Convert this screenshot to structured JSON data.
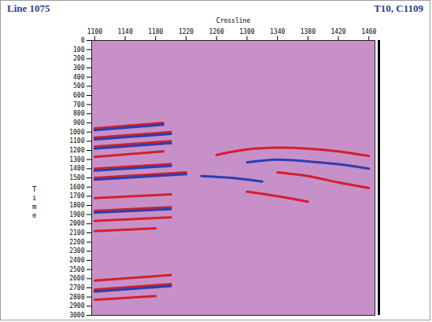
{
  "chart_data": {
    "type": "seismic_section",
    "title": "Line 1075",
    "subtitle": "T10, C1109",
    "xlabel": "Crossline",
    "ylabel": "Time",
    "color": "#c890c8",
    "xlim": [
      1096,
      1468
    ],
    "xticks": [
      1100,
      1140,
      1180,
      1220,
      1260,
      1300,
      1340,
      1380,
      1420,
      1460
    ],
    "ylim": [
      0,
      3000
    ],
    "yticks": [
      0,
      100,
      200,
      300,
      400,
      500,
      600,
      700,
      800,
      900,
      1000,
      1100,
      1200,
      1300,
      1400,
      1500,
      1600,
      1700,
      1800,
      1900,
      2000,
      2100,
      2200,
      2300,
      2400,
      2500,
      2600,
      2700,
      2800,
      2900,
      3000
    ],
    "series": [
      {
        "color": "#d0202a",
        "x": [
          1100,
          1190
        ],
        "values": [
          960,
          900
        ]
      },
      {
        "color": "#2a3fb0",
        "x": [
          1100,
          1190
        ],
        "values": [
          980,
          920
        ]
      },
      {
        "color": "#d0202a",
        "x": [
          1100,
          1200
        ],
        "values": [
          1060,
          1000
        ]
      },
      {
        "color": "#2a3fb0",
        "x": [
          1100,
          1200
        ],
        "values": [
          1080,
          1020
        ]
      },
      {
        "color": "#d0202a",
        "x": [
          1100,
          1200
        ],
        "values": [
          1160,
          1100
        ]
      },
      {
        "color": "#2a3fb0",
        "x": [
          1100,
          1200
        ],
        "values": [
          1180,
          1120
        ]
      },
      {
        "color": "#d0202a",
        "x": [
          1100,
          1190
        ],
        "values": [
          1270,
          1210
        ]
      },
      {
        "color": "#d0202a",
        "x": [
          1100,
          1200
        ],
        "values": [
          1400,
          1350
        ]
      },
      {
        "color": "#2a3fb0",
        "x": [
          1100,
          1200
        ],
        "values": [
          1420,
          1370
        ]
      },
      {
        "color": "#d0202a",
        "x": [
          1100,
          1220
        ],
        "values": [
          1500,
          1440
        ]
      },
      {
        "color": "#2a3fb0",
        "x": [
          1100,
          1220
        ],
        "values": [
          1520,
          1460
        ]
      },
      {
        "color": "#d0202a",
        "x": [
          1100,
          1200
        ],
        "values": [
          1720,
          1680
        ]
      },
      {
        "color": "#d0202a",
        "x": [
          1100,
          1200
        ],
        "values": [
          1860,
          1820
        ]
      },
      {
        "color": "#2a3fb0",
        "x": [
          1100,
          1200
        ],
        "values": [
          1880,
          1840
        ]
      },
      {
        "color": "#d0202a",
        "x": [
          1100,
          1200
        ],
        "values": [
          1970,
          1930
        ]
      },
      {
        "color": "#d0202a",
        "x": [
          1100,
          1180
        ],
        "values": [
          2080,
          2050
        ]
      },
      {
        "color": "#d0202a",
        "x": [
          1100,
          1200
        ],
        "values": [
          2620,
          2560
        ]
      },
      {
        "color": "#d0202a",
        "x": [
          1100,
          1200
        ],
        "values": [
          2720,
          2660
        ]
      },
      {
        "color": "#2a3fb0",
        "x": [
          1100,
          1200
        ],
        "values": [
          2740,
          2680
        ]
      },
      {
        "color": "#d0202a",
        "x": [
          1100,
          1180
        ],
        "values": [
          2830,
          2790
        ]
      },
      {
        "color": "#d0202a",
        "x": [
          1260,
          1300,
          1340,
          1380,
          1420,
          1460
        ],
        "values": [
          1250,
          1190,
          1170,
          1180,
          1210,
          1260
        ]
      },
      {
        "color": "#2a3fb0",
        "x": [
          1300,
          1340,
          1380,
          1420,
          1460
        ],
        "values": [
          1330,
          1300,
          1320,
          1350,
          1400
        ]
      },
      {
        "color": "#d0202a",
        "x": [
          1340,
          1380,
          1420,
          1460
        ],
        "values": [
          1440,
          1480,
          1550,
          1610
        ]
      },
      {
        "color": "#2a3fb0",
        "x": [
          1240,
          1280,
          1320
        ],
        "values": [
          1480,
          1500,
          1540
        ]
      },
      {
        "color": "#d0202a",
        "x": [
          1300,
          1340,
          1380
        ],
        "values": [
          1650,
          1700,
          1760
        ]
      }
    ]
  }
}
